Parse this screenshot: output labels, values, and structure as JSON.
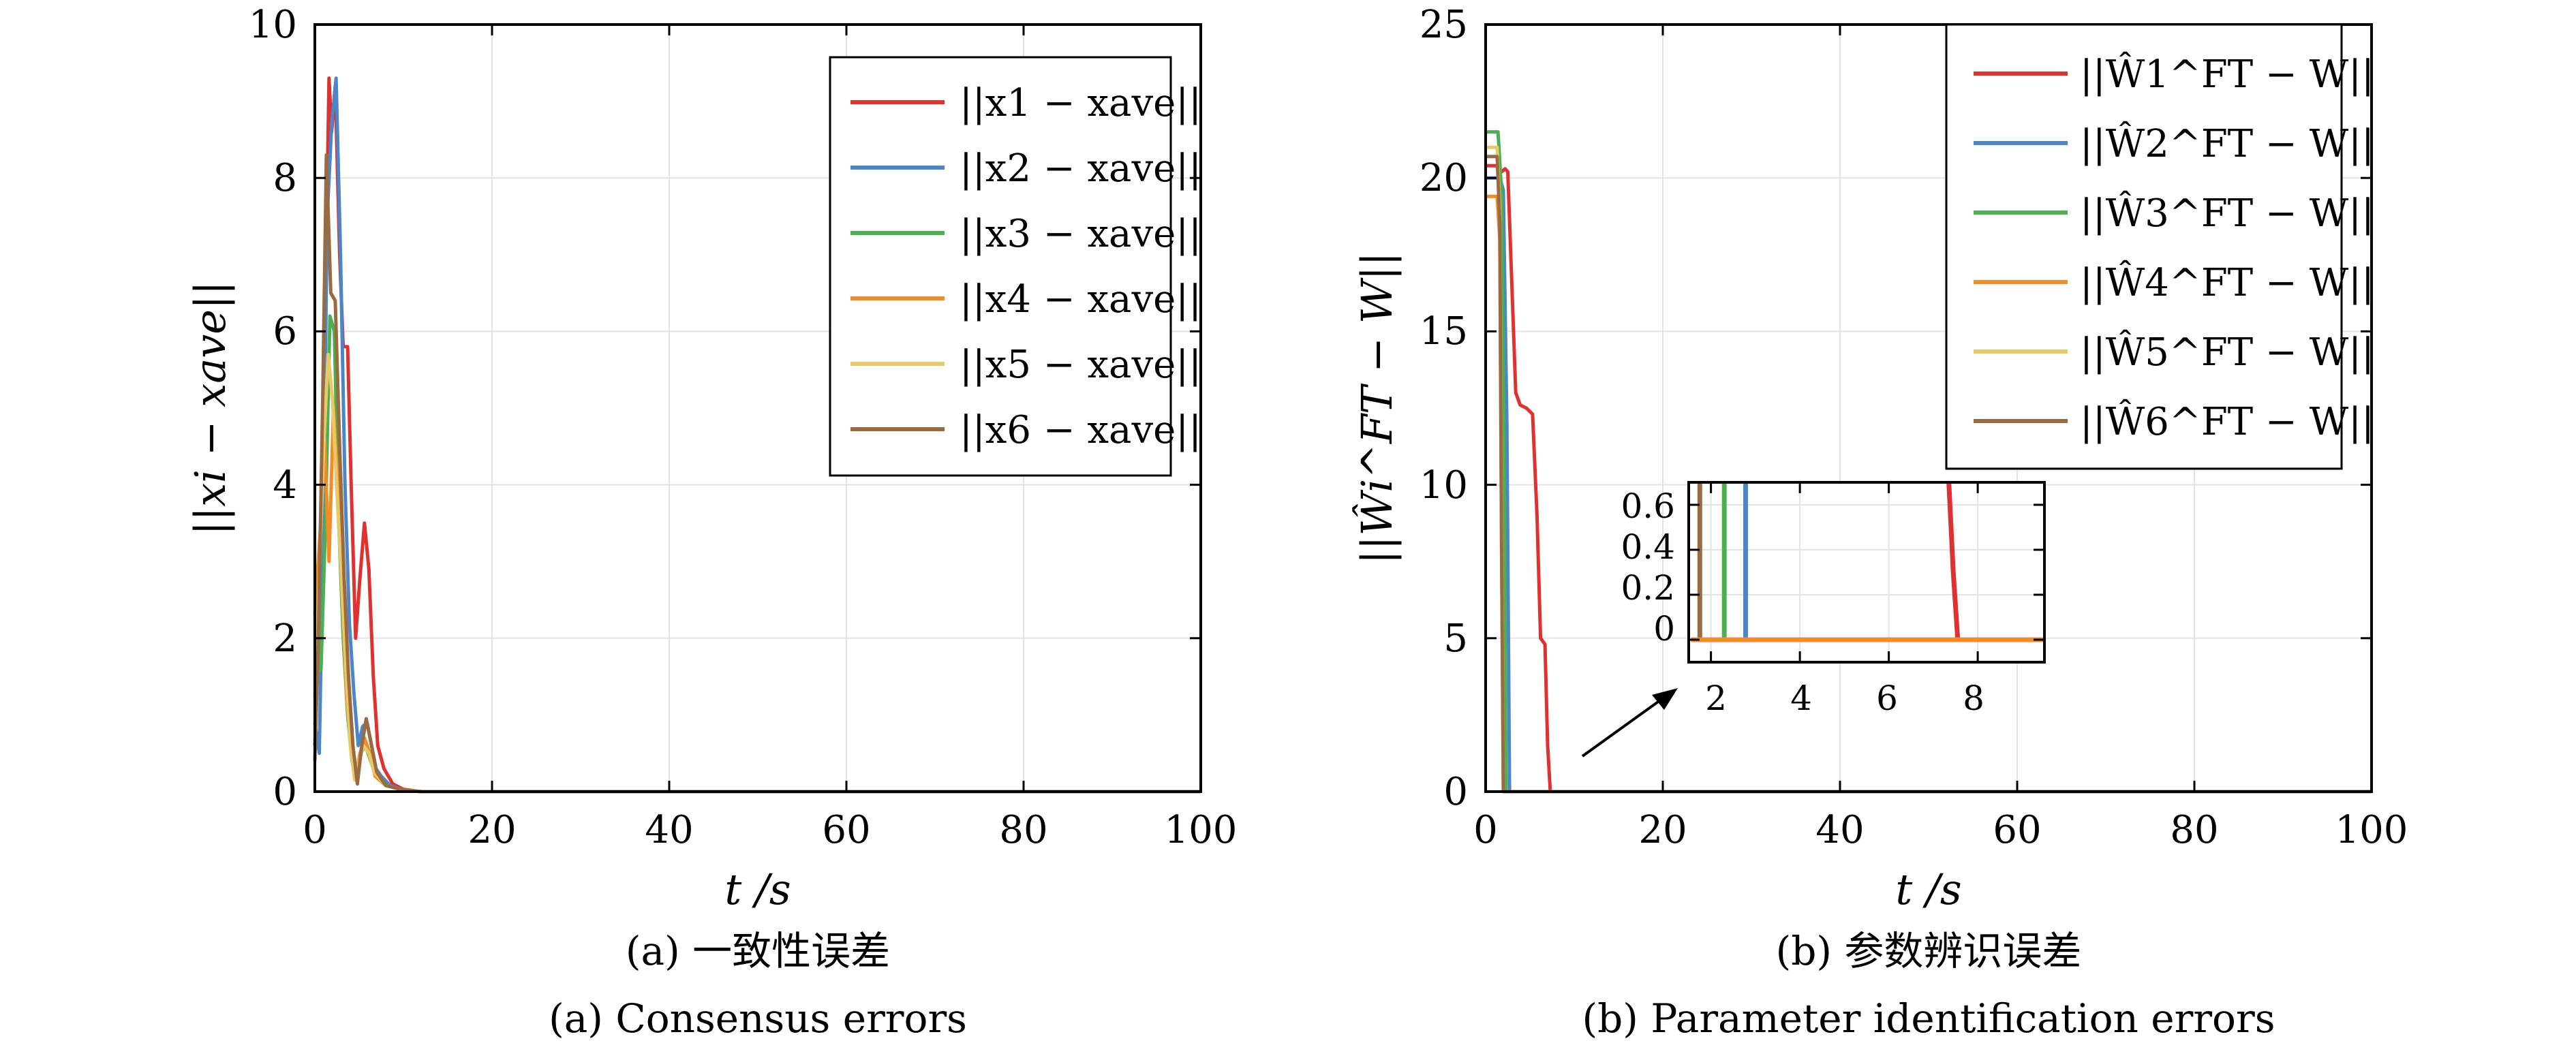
{
  "chart_data": [
    {
      "type": "line",
      "subtitle_zh": "(a) 一致性误差",
      "subtitle_en": "(a) Consensus errors",
      "xlabel": "t /s",
      "ylabel": "||xi − xave||",
      "xlim": [
        0,
        100
      ],
      "ylim": [
        0,
        10
      ],
      "xticks": [
        "0",
        "20",
        "40",
        "60",
        "80",
        "100"
      ],
      "yticks": [
        "0",
        "2",
        "4",
        "6",
        "8",
        "10"
      ],
      "grid": true,
      "legend_position": "top-right",
      "series": [
        {
          "name": "||x1 − xave||",
          "color": "#e03131",
          "points": [
            [
              0,
              0.6
            ],
            [
              0.6,
              2.5
            ],
            [
              1.2,
              6.5
            ],
            [
              1.6,
              9.3
            ],
            [
              1.9,
              8.6
            ],
            [
              2.3,
              9.2
            ],
            [
              2.8,
              7.0
            ],
            [
              3.2,
              5.8
            ],
            [
              3.7,
              5.8
            ],
            [
              4.1,
              4.0
            ],
            [
              4.6,
              2.0
            ],
            [
              5.1,
              2.8
            ],
            [
              5.6,
              3.5
            ],
            [
              6.1,
              2.9
            ],
            [
              6.6,
              1.5
            ],
            [
              7.1,
              0.6
            ],
            [
              7.8,
              0.3
            ],
            [
              8.8,
              0.1
            ],
            [
              10,
              0.03
            ],
            [
              12,
              0.0
            ],
            [
              100,
              0.0
            ]
          ]
        },
        {
          "name": "||x2 − xave||",
          "color": "#4a86c8",
          "points": [
            [
              0,
              0.9
            ],
            [
              0.5,
              0.5
            ],
            [
              0.9,
              3.0
            ],
            [
              1.4,
              7.5
            ],
            [
              1.9,
              8.7
            ],
            [
              2.4,
              9.3
            ],
            [
              2.9,
              7.0
            ],
            [
              3.4,
              4.0
            ],
            [
              3.9,
              2.2
            ],
            [
              4.4,
              1.3
            ],
            [
              4.9,
              0.6
            ],
            [
              5.4,
              0.85
            ],
            [
              5.9,
              0.9
            ],
            [
              6.4,
              0.6
            ],
            [
              6.9,
              0.3
            ],
            [
              7.5,
              0.2
            ],
            [
              8.5,
              0.08
            ],
            [
              10,
              0.02
            ],
            [
              12,
              0.0
            ],
            [
              100,
              0.0
            ]
          ]
        },
        {
          "name": "||x3 − xave||",
          "color": "#4caf50",
          "points": [
            [
              0,
              1.5
            ],
            [
              0.7,
              1.6
            ],
            [
              1.2,
              3.5
            ],
            [
              1.7,
              6.2
            ],
            [
              2.2,
              6.0
            ],
            [
              2.7,
              3.5
            ],
            [
              3.2,
              2.0
            ],
            [
              3.7,
              1.0
            ],
            [
              4.2,
              0.4
            ],
            [
              4.7,
              0.2
            ],
            [
              5.2,
              0.5
            ],
            [
              5.7,
              0.6
            ],
            [
              6.3,
              0.4
            ],
            [
              6.9,
              0.2
            ],
            [
              8,
              0.08
            ],
            [
              10,
              0.02
            ],
            [
              12,
              0.0
            ],
            [
              100,
              0.0
            ]
          ]
        },
        {
          "name": "||x4 − xave||",
          "color": "#f28c28",
          "points": [
            [
              0,
              2.3
            ],
            [
              0.6,
              3.4
            ],
            [
              1.1,
              4.6
            ],
            [
              1.6,
              3.0
            ],
            [
              2.1,
              5.0
            ],
            [
              2.6,
              4.0
            ],
            [
              3.1,
              2.5
            ],
            [
              3.6,
              1.2
            ],
            [
              4.1,
              0.6
            ],
            [
              4.6,
              0.2
            ],
            [
              5.1,
              0.5
            ],
            [
              5.6,
              0.7
            ],
            [
              6.2,
              0.5
            ],
            [
              6.8,
              0.2
            ],
            [
              8,
              0.08
            ],
            [
              10,
              0.02
            ],
            [
              12,
              0.0
            ],
            [
              100,
              0.0
            ]
          ]
        },
        {
          "name": "||x5 − xave||",
          "color": "#e8c867",
          "points": [
            [
              0,
              1.2
            ],
            [
              0.5,
              2.8
            ],
            [
              1.0,
              4.5
            ],
            [
              1.5,
              5.7
            ],
            [
              2.0,
              5.1
            ],
            [
              2.5,
              3.9
            ],
            [
              3.0,
              2.8
            ],
            [
              3.5,
              1.6
            ],
            [
              4.0,
              0.6
            ],
            [
              4.5,
              0.15
            ],
            [
              5.0,
              0.4
            ],
            [
              5.5,
              0.6
            ],
            [
              6.1,
              0.5
            ],
            [
              6.7,
              0.25
            ],
            [
              8,
              0.08
            ],
            [
              10,
              0.02
            ],
            [
              12,
              0.0
            ],
            [
              100,
              0.0
            ]
          ]
        },
        {
          "name": "||x6 − xave||",
          "color": "#9a6a40",
          "points": [
            [
              0,
              0.4
            ],
            [
              0.4,
              2.0
            ],
            [
              0.9,
              5.2
            ],
            [
              1.3,
              8.3
            ],
            [
              1.8,
              6.5
            ],
            [
              2.3,
              6.4
            ],
            [
              2.8,
              4.5
            ],
            [
              3.3,
              2.8
            ],
            [
              3.8,
              1.5
            ],
            [
              4.3,
              0.6
            ],
            [
              4.8,
              0.1
            ],
            [
              5.3,
              0.6
            ],
            [
              5.8,
              0.95
            ],
            [
              6.4,
              0.6
            ],
            [
              7.0,
              0.25
            ],
            [
              8,
              0.08
            ],
            [
              10,
              0.02
            ],
            [
              12,
              0.0
            ],
            [
              100,
              0.0
            ]
          ]
        }
      ]
    },
    {
      "type": "line",
      "subtitle_zh": "(b) 参数辨识误差",
      "subtitle_en": "(b) Parameter identification errors",
      "xlabel": "t /s",
      "ylabel": "||Ŵi^FT − W||",
      "xlim": [
        0,
        100
      ],
      "ylim": [
        0,
        25
      ],
      "xticks": [
        "0",
        "20",
        "40",
        "60",
        "80",
        "100"
      ],
      "yticks": [
        "0",
        "5",
        "10",
        "15",
        "20",
        "25"
      ],
      "grid": true,
      "legend_position": "top-right",
      "series": [
        {
          "name": "||Ŵ1^FT − W||",
          "color": "#e03131",
          "points": [
            [
              0,
              20.4
            ],
            [
              1.2,
              20.4
            ],
            [
              1.8,
              20.2
            ],
            [
              2.2,
              20.3
            ],
            [
              2.5,
              20.2
            ],
            [
              2.9,
              17.0
            ],
            [
              3.4,
              13.0
            ],
            [
              3.9,
              12.6
            ],
            [
              4.6,
              12.5
            ],
            [
              5.3,
              12.3
            ],
            [
              5.8,
              9.0
            ],
            [
              6.2,
              5.0
            ],
            [
              6.7,
              4.8
            ],
            [
              7.0,
              1.5
            ],
            [
              7.3,
              0.0
            ],
            [
              100,
              0.0
            ]
          ]
        },
        {
          "name": "||Ŵ2^FT − W||",
          "color": "#4a86c8",
          "points": [
            [
              0,
              20.0
            ],
            [
              1.6,
              20.0
            ],
            [
              2.0,
              19.6
            ],
            [
              2.4,
              12.0
            ],
            [
              2.7,
              0.0
            ],
            [
              100,
              0.0
            ]
          ]
        },
        {
          "name": "||Ŵ3^FT − W||",
          "color": "#4caf50",
          "points": [
            [
              0,
              21.5
            ],
            [
              1.4,
              21.5
            ],
            [
              1.8,
              19.5
            ],
            [
              2.1,
              10.0
            ],
            [
              2.3,
              0.0
            ],
            [
              100,
              0.0
            ]
          ]
        },
        {
          "name": "||Ŵ4^FT − W||",
          "color": "#f28c28",
          "points": [
            [
              0,
              19.4
            ],
            [
              1.3,
              19.4
            ],
            [
              1.6,
              18.0
            ],
            [
              1.8,
              8.0
            ],
            [
              2.0,
              0.0
            ],
            [
              100,
              0.0
            ]
          ]
        },
        {
          "name": "||Ŵ5^FT − W||",
          "color": "#e8c867",
          "points": [
            [
              0,
              21.0
            ],
            [
              1.3,
              21.0
            ],
            [
              1.6,
              19.0
            ],
            [
              1.8,
              9.0
            ],
            [
              2.0,
              0.0
            ],
            [
              100,
              0.0
            ]
          ]
        },
        {
          "name": "||Ŵ6^FT − W||",
          "color": "#9a6a40",
          "points": [
            [
              0,
              20.7
            ],
            [
              1.3,
              20.7
            ],
            [
              1.6,
              18.5
            ],
            [
              1.8,
              8.0
            ],
            [
              2.0,
              0.0
            ],
            [
              100,
              0.0
            ]
          ]
        }
      ],
      "inset": {
        "xlim": [
          1.5,
          9.5
        ],
        "ylim": [
          -0.1,
          0.7
        ],
        "xticks": [
          "2",
          "4",
          "6",
          "8"
        ],
        "yticks": [
          "0",
          "0.2",
          "0.4",
          "0.6"
        ],
        "series": [
          {
            "color": "#9a6a40",
            "points": [
              [
                1.75,
                0.75
              ],
              [
                1.75,
                0.0
              ],
              [
                9.5,
                0.0
              ]
            ]
          },
          {
            "color": "#4caf50",
            "points": [
              [
                2.3,
                0.75
              ],
              [
                2.3,
                0.0
              ],
              [
                9.5,
                0.0
              ]
            ]
          },
          {
            "color": "#4a86c8",
            "points": [
              [
                2.78,
                0.75
              ],
              [
                2.78,
                0.0
              ],
              [
                9.5,
                0.0
              ]
            ]
          },
          {
            "color": "#e03131",
            "points": [
              [
                7.35,
                0.75
              ],
              [
                7.45,
                0.3
              ],
              [
                7.55,
                0.0
              ],
              [
                9.5,
                0.0
              ]
            ]
          },
          {
            "color": "#f28c28",
            "points": [
              [
                1.55,
                0.0
              ],
              [
                9.5,
                0.0
              ]
            ]
          }
        ]
      }
    }
  ]
}
